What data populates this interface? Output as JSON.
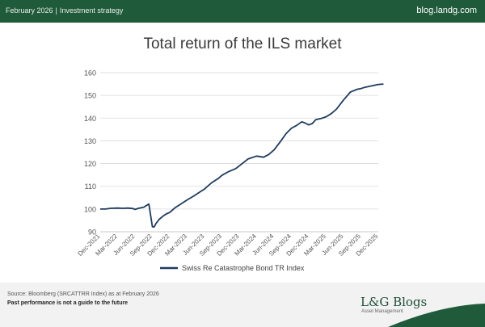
{
  "header": {
    "date": "February 2026",
    "separator": "|",
    "category": "Investment strategy",
    "site": "blog.landg.com"
  },
  "chart_data": {
    "type": "line",
    "title": "Total return of the ILS market",
    "xlabel": "",
    "ylabel": "",
    "ylim": [
      90,
      160
    ],
    "yticks": [
      90,
      100,
      110,
      120,
      130,
      140,
      150,
      160
    ],
    "x_tick_labels": [
      "Dec-2021",
      "Mar-2022",
      "Jun-2022",
      "Sep-2022",
      "Dec-2022",
      "Mar-2023",
      "Jun-2023",
      "Sep-2023",
      "Dec-2023",
      "Mar-2024",
      "Jun-2024",
      "Sep-2024",
      "Dec-2024",
      "Mar-2025",
      "Jun-2025",
      "Sep-2025",
      "Dec-2025"
    ],
    "legend": "bottom",
    "series": [
      {
        "name": "Swiss Re Catastrophe Bond TR Index",
        "color": "#1f3b5c",
        "x": [
          0,
          0.3,
          0.6,
          1,
          1.3,
          1.6,
          1.9,
          2.0,
          2.2,
          2.5,
          2.8,
          3.0,
          3.1,
          3.2,
          3.4,
          3.6,
          3.8,
          4,
          4.3,
          4.6,
          5,
          5.4,
          5.8,
          6,
          6.4,
          6.8,
          7,
          7.4,
          7.8,
          8,
          8.5,
          9,
          9.4,
          9.7,
          10,
          10.4,
          10.7,
          11,
          11.3,
          11.6,
          11.8,
          12,
          12.2,
          12.4,
          12.7,
          13,
          13.3,
          13.6,
          14,
          14.4,
          14.8,
          15,
          15.2,
          15.5,
          15.8,
          16,
          16.3
        ],
        "y": [
          100,
          100,
          100.3,
          100.4,
          100.3,
          100.4,
          100.2,
          99.8,
          100.3,
          100.8,
          102.2,
          92.2,
          92.1,
          93.5,
          95.5,
          96.8,
          97.8,
          98.5,
          100.5,
          102,
          104,
          105.8,
          107.8,
          108.8,
          111.5,
          113.5,
          114.8,
          116.5,
          117.8,
          119,
          122,
          123.3,
          122.8,
          124,
          126,
          130,
          133.2,
          135.5,
          136.8,
          138.4,
          137.8,
          137,
          137.6,
          139.3,
          139.8,
          140.6,
          142,
          144,
          148,
          151.5,
          152.7,
          153,
          153.5,
          154,
          154.5,
          154.8,
          155
        ]
      }
    ]
  },
  "footer": {
    "source": "Source: Bloomberg (SRCATTRR Index) as at February 2026",
    "disclaimer": "Past performance is not a guide to the future",
    "brand": "L&G Blogs",
    "brand_sub": "Asset Management"
  }
}
